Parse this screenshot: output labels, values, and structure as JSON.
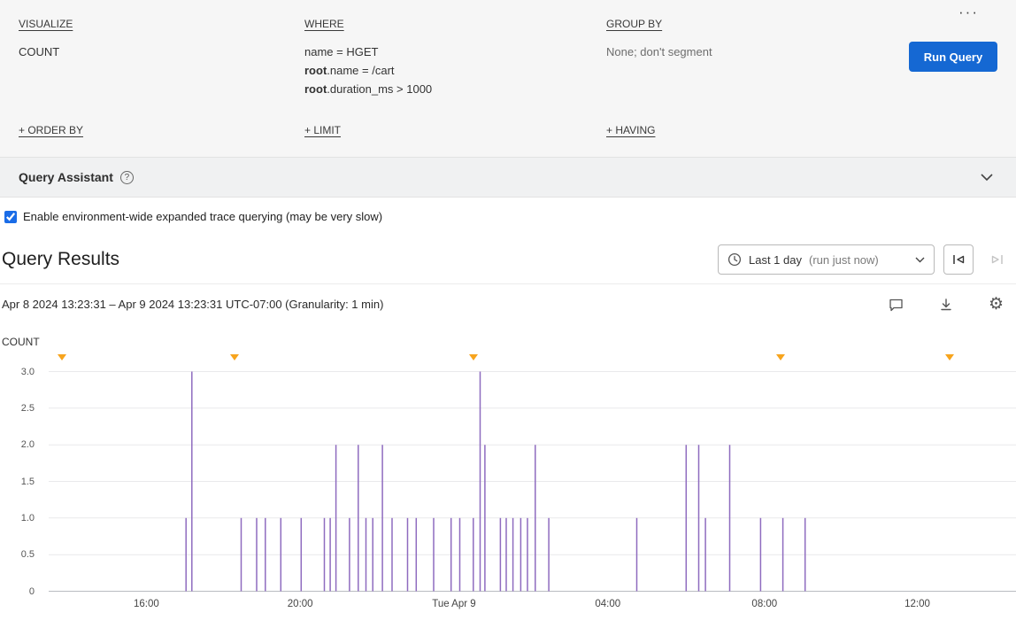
{
  "builder": {
    "visualize": {
      "label": "VISUALIZE",
      "value": "COUNT"
    },
    "where": {
      "label": "WHERE",
      "clauses": [
        {
          "prefix": "",
          "rest": "name = HGET"
        },
        {
          "prefix": "root",
          "rest": ".name = /cart"
        },
        {
          "prefix": "root",
          "rest": ".duration_ms > 1000"
        }
      ]
    },
    "group_by": {
      "label": "GROUP BY",
      "value": "None; don't segment"
    },
    "order_by_label": "+ ORDER BY",
    "limit_label": "+ LIMIT",
    "having_label": "+ HAVING",
    "more_label": "···",
    "run_query_label": "Run Query"
  },
  "assistant": {
    "title": "Query Assistant",
    "help_glyph": "?"
  },
  "options": {
    "expanded_trace_label": "Enable environment-wide expanded trace querying (may be very slow)",
    "checked_attr": "checked"
  },
  "results": {
    "title": "Query Results",
    "time_range_value": "Last 1 day",
    "time_range_note": "(run just now)",
    "range_text": "Apr 8 2024 13:23:31 – Apr 9 2024 13:23:31 UTC-07:00 (Granularity: 1 min)"
  },
  "chart_data": {
    "type": "line",
    "ylabel": "COUNT",
    "ylim": [
      0,
      3
    ],
    "grid_color": "#e9e9ec",
    "axis_color": "#b9bcc1",
    "marker_color": "#f7a41d",
    "yticks": [
      {
        "v": 0,
        "label": "0"
      },
      {
        "v": 0.5,
        "label": "0.5"
      },
      {
        "v": 1,
        "label": "1.0"
      },
      {
        "v": 1.5,
        "label": "1.5"
      },
      {
        "v": 2,
        "label": "2.0"
      },
      {
        "v": 2.5,
        "label": "2.5"
      },
      {
        "v": 3,
        "label": "3.0"
      }
    ],
    "xticks": [
      {
        "pos": 0.101,
        "label": "16:00"
      },
      {
        "pos": 0.26,
        "label": "20:00"
      },
      {
        "pos": 0.419,
        "label": "Tue Apr 9"
      },
      {
        "pos": 0.578,
        "label": "04:00"
      },
      {
        "pos": 0.74,
        "label": "08:00"
      },
      {
        "pos": 0.898,
        "label": "12:00"
      }
    ],
    "markers": [
      0.014,
      0.192,
      0.439,
      0.757,
      0.931
    ],
    "series": [
      {
        "name": "COUNT",
        "color": "#8e6bbf",
        "points": [
          [
            0.142,
            1
          ],
          [
            0.148,
            3
          ],
          [
            0.199,
            1
          ],
          [
            0.215,
            1
          ],
          [
            0.224,
            1
          ],
          [
            0.24,
            1
          ],
          [
            0.261,
            1
          ],
          [
            0.285,
            1
          ],
          [
            0.291,
            1
          ],
          [
            0.297,
            2
          ],
          [
            0.311,
            1
          ],
          [
            0.32,
            2
          ],
          [
            0.328,
            1
          ],
          [
            0.335,
            1
          ],
          [
            0.345,
            2
          ],
          [
            0.355,
            1
          ],
          [
            0.371,
            1
          ],
          [
            0.38,
            1
          ],
          [
            0.398,
            1
          ],
          [
            0.416,
            1
          ],
          [
            0.425,
            1
          ],
          [
            0.439,
            1
          ],
          [
            0.446,
            3
          ],
          [
            0.451,
            2
          ],
          [
            0.467,
            1
          ],
          [
            0.473,
            1
          ],
          [
            0.48,
            1
          ],
          [
            0.488,
            1
          ],
          [
            0.495,
            1
          ],
          [
            0.503,
            2
          ],
          [
            0.517,
            1
          ],
          [
            0.608,
            1
          ],
          [
            0.659,
            2
          ],
          [
            0.672,
            2
          ],
          [
            0.679,
            1
          ],
          [
            0.704,
            2
          ],
          [
            0.736,
            1
          ],
          [
            0.759,
            1
          ],
          [
            0.782,
            1
          ]
        ]
      }
    ]
  }
}
